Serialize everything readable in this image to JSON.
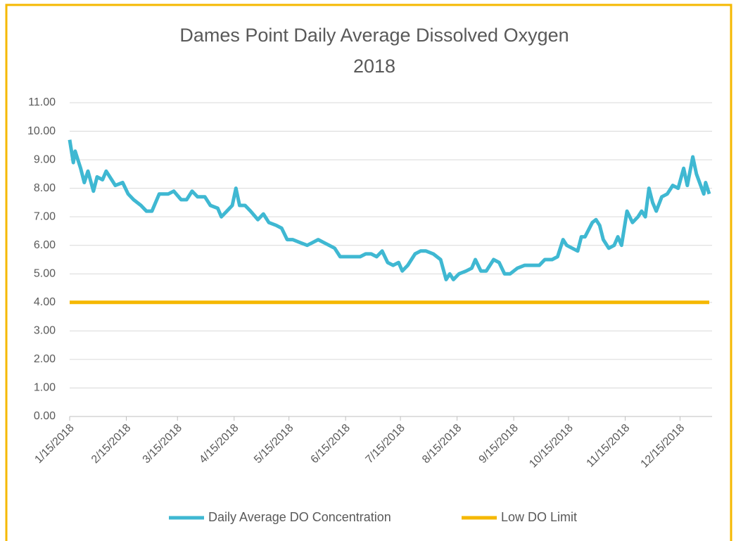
{
  "chart_data": {
    "type": "line",
    "title": "Dames Point Daily Average Dissolved Oxygen",
    "subtitle": "2018",
    "xlim": [
      "1/15/2018",
      "12/31/2018"
    ],
    "xticks": [
      "1/15/2018",
      "2/15/2018",
      "3/15/2018",
      "4/15/2018",
      "5/15/2018",
      "6/15/2018",
      "7/15/2018",
      "8/15/2018",
      "9/15/2018",
      "10/15/2018",
      "11/15/2018",
      "12/15/2018"
    ],
    "ylim": [
      0,
      11
    ],
    "yticks": [
      {
        "value": 0,
        "label": "0.00"
      },
      {
        "value": 1,
        "label": "1.00"
      },
      {
        "value": 2,
        "label": "2.00"
      },
      {
        "value": 3,
        "label": "3.00"
      },
      {
        "value": 4,
        "label": "4.00"
      },
      {
        "value": 5,
        "label": "5.00"
      },
      {
        "value": 6,
        "label": "6.00"
      },
      {
        "value": 7,
        "label": "7.00"
      },
      {
        "value": 8,
        "label": "8.00"
      },
      {
        "value": 9,
        "label": "9.00"
      },
      {
        "value": 10,
        "label": "10.00"
      },
      {
        "value": 11,
        "label": "11.00"
      }
    ],
    "grid": true,
    "legend": "bottom",
    "series": [
      {
        "name": "Daily Average DO Concentration",
        "color": "#3fb8d2",
        "x": [
          "1/15/2018",
          "1/17/2018",
          "1/18/2018",
          "1/21/2018",
          "1/23/2018",
          "1/25/2018",
          "1/28/2018",
          "1/30/2018",
          "2/2/2018",
          "2/4/2018",
          "2/7/2018",
          "2/9/2018",
          "2/13/2018",
          "2/16/2018",
          "2/19/2018",
          "2/23/2018",
          "2/26/2018",
          "3/1/2018",
          "3/5/2018",
          "3/8/2018",
          "3/10/2018",
          "3/13/2018",
          "3/17/2018",
          "3/20/2018",
          "3/23/2018",
          "3/26/2018",
          "3/30/2018",
          "4/2/2018",
          "4/6/2018",
          "4/8/2018",
          "4/11/2018",
          "4/14/2018",
          "4/16/2018",
          "4/18/2018",
          "4/21/2018",
          "4/24/2018",
          "4/28/2018",
          "5/1/2018",
          "5/4/2018",
          "5/8/2018",
          "5/11/2018",
          "5/14/2018",
          "5/17/2018",
          "5/21/2018",
          "5/25/2018",
          "5/28/2018",
          "5/31/2018",
          "6/3/2018",
          "6/6/2018",
          "6/9/2018",
          "6/12/2018",
          "6/15/2018",
          "6/19/2018",
          "6/23/2018",
          "6/26/2018",
          "6/29/2018",
          "7/2/2018",
          "7/5/2018",
          "7/8/2018",
          "7/11/2018",
          "7/14/2018",
          "7/16/2018",
          "7/19/2018",
          "7/23/2018",
          "7/26/2018",
          "7/29/2018",
          "8/2/2018",
          "8/6/2018",
          "8/9/2018",
          "8/11/2018",
          "8/13/2018",
          "8/16/2018",
          "8/20/2018",
          "8/23/2018",
          "8/25/2018",
          "8/28/2018",
          "8/31/2018",
          "9/4/2018",
          "9/7/2018",
          "9/10/2018",
          "9/13/2018",
          "9/17/2018",
          "9/21/2018",
          "9/25/2018",
          "9/29/2018",
          "10/2/2018",
          "10/6/2018",
          "10/9/2018",
          "10/12/2018",
          "10/14/2018",
          "10/17/2018",
          "10/20/2018",
          "10/22/2018",
          "10/24/2018",
          "10/28/2018",
          "10/30/2018",
          "11/1/2018",
          "11/3/2018",
          "11/6/2018",
          "11/9/2018",
          "11/11/2018",
          "11/13/2018",
          "11/16/2018",
          "11/19/2018",
          "11/22/2018",
          "11/24/2018",
          "11/26/2018",
          "11/28/2018",
          "11/30/2018",
          "12/2/2018",
          "12/5/2018",
          "12/8/2018",
          "12/11/2018",
          "12/14/2018",
          "12/17/2018",
          "12/19/2018",
          "12/22/2018",
          "12/24/2018",
          "12/28/2018",
          "12/29/2018",
          "12/31/2018"
        ],
        "values": [
          9.7,
          8.9,
          9.3,
          8.7,
          8.2,
          8.6,
          7.9,
          8.4,
          8.3,
          8.6,
          8.3,
          8.1,
          8.2,
          7.8,
          7.6,
          7.4,
          7.2,
          7.2,
          7.8,
          7.8,
          7.8,
          7.9,
          7.6,
          7.6,
          7.9,
          7.7,
          7.7,
          7.4,
          7.3,
          7.0,
          7.2,
          7.4,
          8.0,
          7.4,
          7.4,
          7.2,
          6.9,
          7.1,
          6.8,
          6.7,
          6.6,
          6.2,
          6.2,
          6.1,
          6.0,
          6.1,
          6.2,
          6.1,
          6.0,
          5.9,
          5.6,
          5.6,
          5.6,
          5.6,
          5.7,
          5.7,
          5.6,
          5.8,
          5.4,
          5.3,
          5.4,
          5.1,
          5.3,
          5.7,
          5.8,
          5.8,
          5.7,
          5.5,
          4.8,
          5.0,
          4.8,
          5.0,
          5.1,
          5.2,
          5.5,
          5.1,
          5.1,
          5.5,
          5.4,
          5.0,
          5.0,
          5.2,
          5.3,
          5.3,
          5.3,
          5.5,
          5.5,
          5.6,
          6.2,
          6.0,
          5.9,
          5.8,
          6.3,
          6.3,
          6.8,
          6.9,
          6.7,
          6.2,
          5.9,
          6.0,
          6.3,
          6.0,
          7.2,
          6.8,
          7.0,
          7.2,
          7.0,
          8.0,
          7.5,
          7.2,
          7.7,
          7.8,
          8.1,
          8.0,
          8.7,
          8.1,
          9.1,
          8.5,
          7.8,
          8.2,
          7.8
        ]
      },
      {
        "name": "Low DO Limit",
        "color": "#f5b800",
        "x": [
          "1/15/2018",
          "12/31/2018"
        ],
        "values": [
          4,
          4
        ]
      }
    ]
  }
}
